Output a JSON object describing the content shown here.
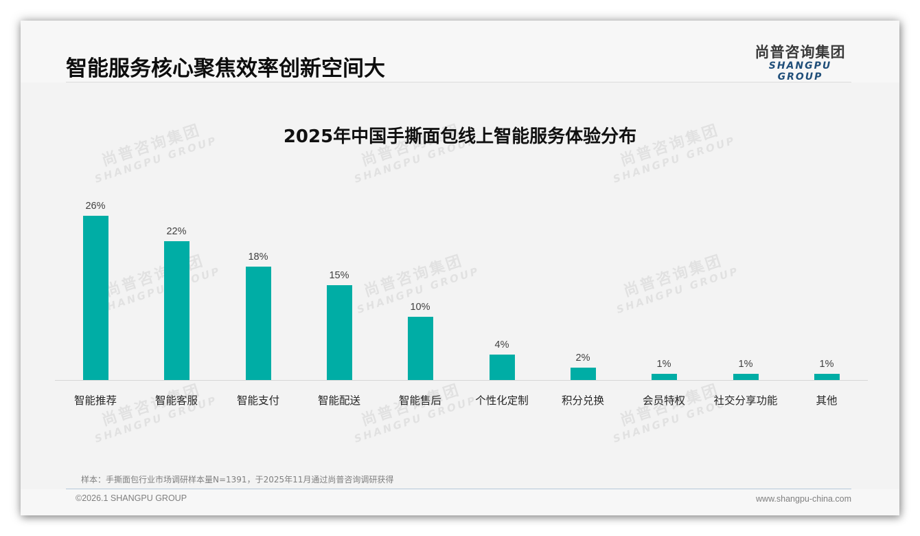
{
  "header": {
    "title": "智能服务核心聚焦效率创新空间大",
    "logo_cn": "尚普咨询集团",
    "logo_en": "SHANGPU GROUP"
  },
  "watermark": {
    "cn": "尚普咨询集团",
    "en": "SHANGPU GROUP"
  },
  "chart_data": {
    "type": "bar",
    "title": "2025年中国手撕面包线上智能服务体验分布",
    "xlabel": "",
    "ylabel": "",
    "categories": [
      "智能推荐",
      "智能客服",
      "智能支付",
      "智能配送",
      "智能售后",
      "个性化定制",
      "积分兑换",
      "会员特权",
      "社交分享功能",
      "其他"
    ],
    "values": [
      26,
      22,
      18,
      15,
      10,
      4,
      2,
      1,
      1,
      1
    ],
    "value_labels": [
      "26%",
      "22%",
      "18%",
      "15%",
      "10%",
      "4%",
      "2%",
      "1%",
      "1%",
      "1%"
    ],
    "unit": "%",
    "ylim": [
      0,
      28
    ],
    "grid": false,
    "legend": "none",
    "bar_color": "#00ada5"
  },
  "footer": {
    "sample_note": "样本：手撕面包行业市场调研样本量N=1391，于2025年11月通过尚普咨询调研获得",
    "copyright": "©2026.1 SHANGPU GROUP",
    "website": "www.shangpu-china.com"
  }
}
